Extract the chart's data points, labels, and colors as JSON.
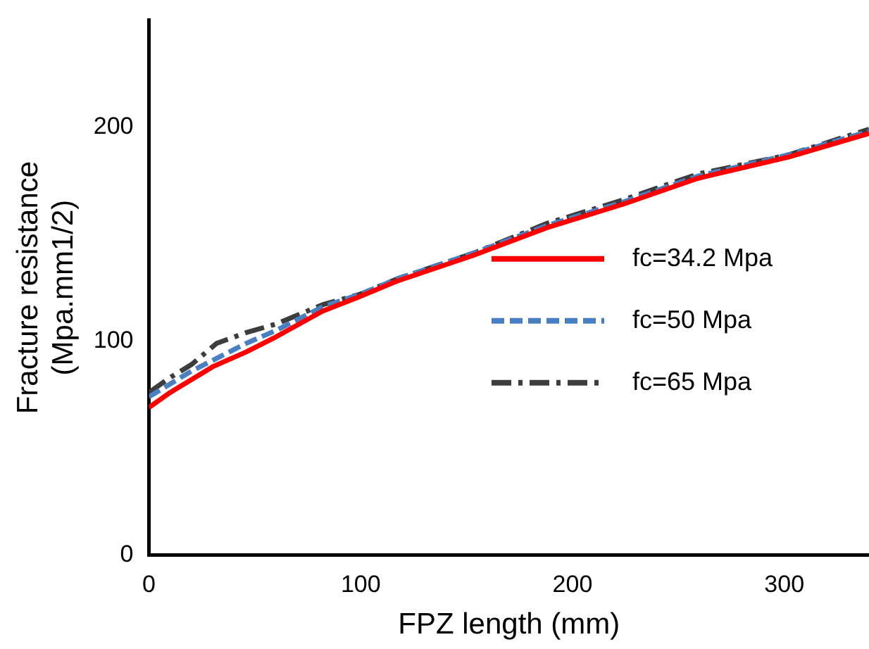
{
  "chart_data": {
    "type": "line",
    "xlabel": "FPZ length (mm)",
    "ylabel": "Fracture resistance\n(Mpa.mm1/2)",
    "xlim": [
      0,
      340
    ],
    "xticks": [
      0,
      100,
      200,
      300
    ],
    "ylim": [
      0,
      250
    ],
    "yticks": [
      0,
      100,
      200
    ],
    "grid": false,
    "legend": "right",
    "marker": "none",
    "series": [
      {
        "name": "fc=34.2 Mpa",
        "color": "#ff0000",
        "line_style": "solid",
        "x": [
          0,
          10,
          20,
          30,
          46,
          60,
          82,
          100,
          117,
          153,
          188,
          224,
          259,
          302,
          340
        ],
        "values": [
          69,
          76,
          82,
          88,
          95,
          102,
          114,
          121,
          128,
          140,
          153,
          164,
          176,
          186,
          197
        ]
      },
      {
        "name": "fc=50 Mpa",
        "color": "#4a7fc1",
        "line_style": "dashed",
        "x": [
          0,
          10,
          20,
          30,
          46,
          60,
          82,
          100,
          117,
          153,
          188,
          224,
          259,
          302,
          340
        ],
        "values": [
          74,
          80,
          86,
          91,
          99,
          105,
          116,
          122,
          129,
          141,
          154,
          165,
          177,
          187,
          198
        ]
      },
      {
        "name": "fc=65 Mpa",
        "color": "#3d3d3d",
        "line_style": "dashdot",
        "x": [
          0,
          10,
          20,
          32,
          46,
          60,
          82,
          100,
          117,
          153,
          188,
          224,
          259,
          302,
          340
        ],
        "values": [
          76,
          83,
          89,
          99,
          104,
          108,
          117,
          122,
          129,
          141,
          155,
          166,
          178,
          187,
          199
        ]
      }
    ]
  }
}
